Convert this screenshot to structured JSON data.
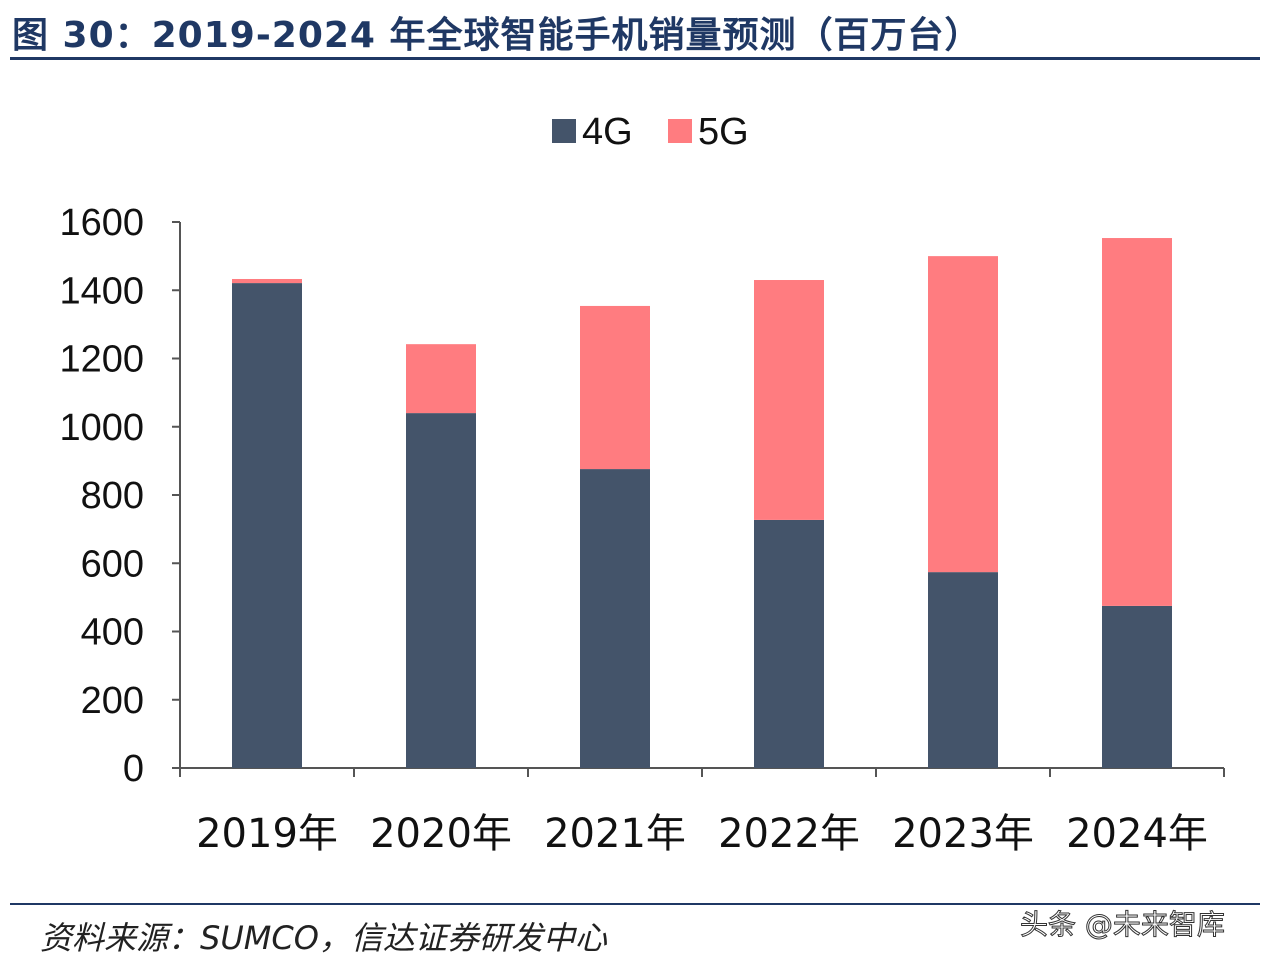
{
  "title": "图 30：2019-2024 年全球智能手机销量预测（百万台）",
  "source": "资料来源：SUMCO，信达证券研发中心",
  "watermark": "头条 @未来智库",
  "chart_data": {
    "type": "bar",
    "stacked": true,
    "title": "",
    "xlabel": "",
    "ylabel": "",
    "categories": [
      "2019年",
      "2020年",
      "2021年",
      "2022年",
      "2023年",
      "2024年"
    ],
    "series": [
      {
        "name": "4G",
        "color": "#44546a",
        "values": [
          1421,
          1040,
          876,
          727,
          574,
          475
        ]
      },
      {
        "name": "5G",
        "color": "#ff7c80",
        "values": [
          12,
          202,
          478,
          703,
          926,
          1078
        ]
      }
    ],
    "ylim": [
      0,
      1600
    ],
    "yticks": [
      "0",
      "200",
      "400",
      "600",
      "800",
      "1000",
      "1200",
      "1400",
      "1600"
    ],
    "grid": false,
    "legend": "top-center"
  }
}
